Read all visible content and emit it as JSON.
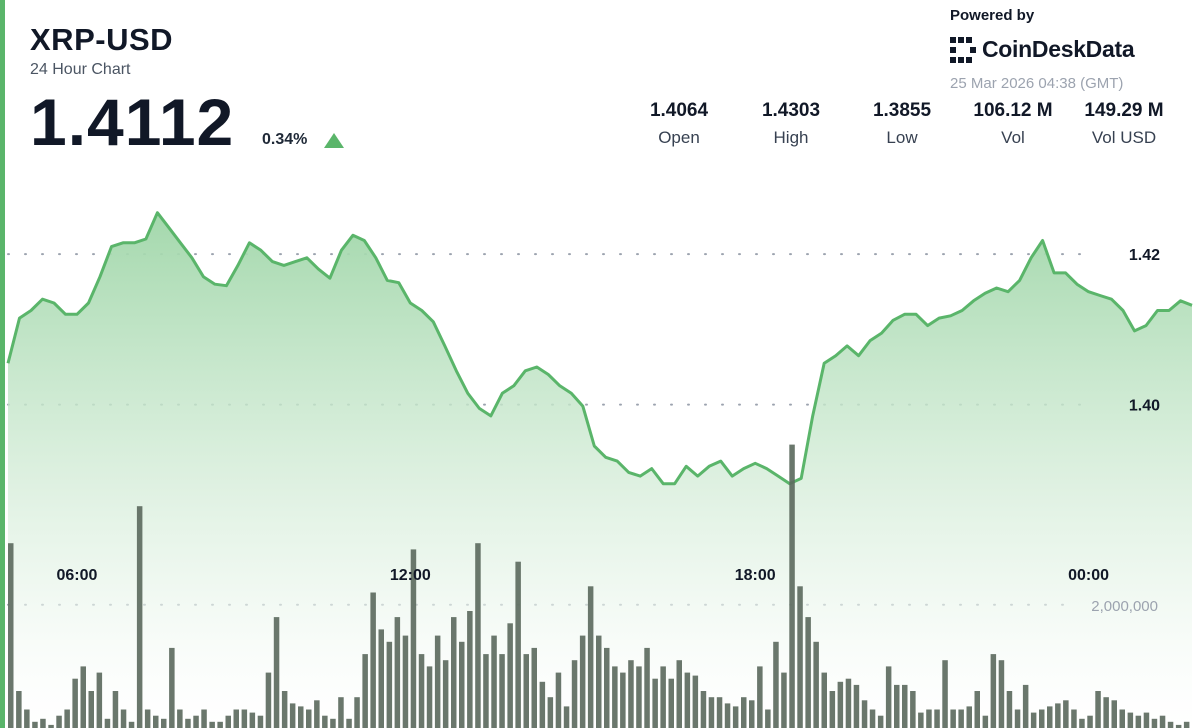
{
  "header": {
    "symbol": "XRP-USD",
    "subtitle": "24 Hour Chart",
    "price": "1.4112",
    "change_pct": "0.34%",
    "change_direction": "up-triangle-icon"
  },
  "branding": {
    "powered_by": "Powered by",
    "name": "CoinDeskData",
    "timestamp": "25 Mar 2026 04:38 (GMT)"
  },
  "stats": [
    {
      "value": "1.4064",
      "label": "Open"
    },
    {
      "value": "1.4303",
      "label": "High"
    },
    {
      "value": "1.3855",
      "label": "Low"
    },
    {
      "value": "106.12 M",
      "label": "Vol"
    },
    {
      "value": "149.29 M",
      "label": "Vol USD"
    }
  ],
  "colors": {
    "accent": "#5ab56a",
    "area_top": "#9fd6a8",
    "volume_bar": "#5d6b5f",
    "grid": "#9ca3af"
  },
  "chart_data": {
    "type": "area",
    "title": "XRP-USD",
    "xlabel": "",
    "ylabel": "",
    "x_tick_labels": [
      "06:00",
      "12:00",
      "18:00",
      "00:00"
    ],
    "x_tick_index": [
      6,
      35,
      65,
      94
    ],
    "y_ticks": [
      1.4,
      1.42
    ],
    "y_tick_labels": [
      "1.40",
      "1.42"
    ],
    "ylim": [
      1.386,
      1.4325
    ],
    "grid": "dotted horizontal",
    "series": [
      {
        "name": "Price",
        "values": [
          1.4055,
          1.4115,
          1.4125,
          1.414,
          1.4135,
          1.412,
          1.412,
          1.4135,
          1.417,
          1.421,
          1.4215,
          1.4215,
          1.422,
          1.4255,
          1.4235,
          1.4215,
          1.4195,
          1.417,
          1.416,
          1.4158,
          1.4185,
          1.4215,
          1.4205,
          1.419,
          1.4185,
          1.419,
          1.4195,
          1.418,
          1.4168,
          1.4205,
          1.4225,
          1.4218,
          1.4195,
          1.4165,
          1.4162,
          1.4135,
          1.4125,
          1.411,
          1.4078,
          1.4045,
          1.4015,
          1.3995,
          1.3985,
          1.4015,
          1.4025,
          1.4045,
          1.405,
          1.404,
          1.4025,
          1.4015,
          1.3998,
          1.3945,
          1.393,
          1.3925,
          1.391,
          1.3905,
          1.3915,
          1.3895,
          1.3895,
          1.3918,
          1.3905,
          1.3918,
          1.3925,
          1.3905,
          1.3915,
          1.3922,
          1.3915,
          1.3905,
          1.3895,
          1.3902,
          1.3985,
          1.4055,
          1.4065,
          1.4078,
          1.4065,
          1.4085,
          1.4095,
          1.4112,
          1.412,
          1.412,
          1.4105,
          1.4115,
          1.4118,
          1.4125,
          1.4138,
          1.4148,
          1.4155,
          1.415,
          1.4165,
          1.4195,
          1.4218,
          1.4175,
          1.4175,
          1.416,
          1.415,
          1.4145,
          1.414,
          1.4125,
          1.4098,
          1.4105,
          1.4125,
          1.4125,
          1.4138,
          1.4132
        ]
      },
      {
        "name": "Volume",
        "values": [
          3.0,
          0.6,
          0.3,
          0.1,
          0.15,
          0.05,
          0.2,
          0.3,
          0.8,
          1.0,
          0.6,
          0.9,
          0.15,
          0.6,
          0.3,
          0.1,
          3.6,
          0.3,
          0.2,
          0.15,
          1.3,
          0.3,
          0.15,
          0.2,
          0.3,
          0.1,
          0.1,
          0.2,
          0.3,
          0.3,
          0.25,
          0.2,
          0.9,
          1.8,
          0.6,
          0.4,
          0.35,
          0.3,
          0.45,
          0.2,
          0.15,
          0.5,
          0.15,
          0.5,
          1.2,
          2.2,
          1.6,
          1.4,
          1.8,
          1.5,
          2.9,
          1.2,
          1.0,
          1.5,
          1.1,
          1.8,
          1.4,
          1.9,
          3.0,
          1.2,
          1.5,
          1.2,
          1.7,
          2.7,
          1.2,
          1.3,
          0.75,
          0.5,
          0.9,
          0.35,
          1.1,
          1.5,
          2.3,
          1.5,
          1.3,
          1.0,
          0.9,
          1.1,
          1.0,
          1.3,
          0.8,
          1.0,
          0.8,
          1.1,
          0.9,
          0.85,
          0.6,
          0.5,
          0.5,
          0.4,
          0.35,
          0.5,
          0.45,
          1.0,
          0.3,
          1.4,
          0.9,
          4.6,
          2.3,
          1.8,
          1.4,
          0.9,
          0.6,
          0.75,
          0.8,
          0.7,
          0.45,
          0.3,
          0.2,
          1.0,
          0.7,
          0.7,
          0.6,
          0.25,
          0.3,
          0.3,
          1.1,
          0.3,
          0.3,
          0.35,
          0.6,
          0.2,
          1.2,
          1.1,
          0.6,
          0.3,
          0.7,
          0.25,
          0.3,
          0.35,
          0.4,
          0.45,
          0.3,
          0.15,
          0.2,
          0.6,
          0.5,
          0.45,
          0.3,
          0.25,
          0.2,
          0.25,
          0.15,
          0.2,
          0.1,
          0.05,
          0.1
        ]
      }
    ],
    "volume_tick_labels": [
      "2,000,000"
    ],
    "volume_unit": "millions"
  }
}
